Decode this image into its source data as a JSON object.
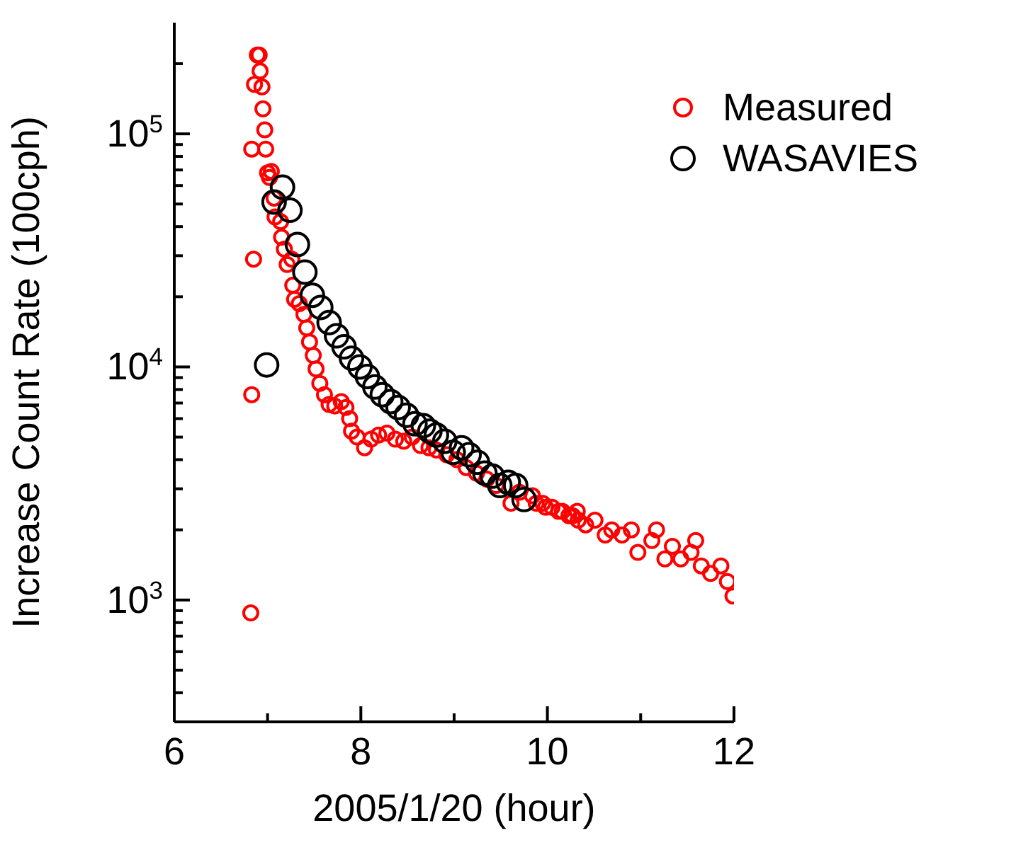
{
  "chart_data": {
    "type": "scatter",
    "xlabel": "2005/1/20 (hour)",
    "ylabel": "Increase Count Rate (100cph)",
    "log": "y",
    "marker": "circle",
    "legend": "top right",
    "grid": false,
    "xlim": [
      6,
      12
    ],
    "xticks": [
      6,
      {
        "value": 7,
        "label": null
      },
      8,
      {
        "value": 9,
        "label": null
      },
      10,
      {
        "value": 11,
        "label": null
      },
      12
    ],
    "ylim": [
      300,
      300000
    ],
    "yticks": [
      {
        "value": 400,
        "label": null
      },
      {
        "value": 500,
        "label": null
      },
      {
        "value": 600,
        "label": null
      },
      {
        "value": 700,
        "label": null
      },
      {
        "value": 800,
        "label": null
      },
      {
        "value": 900,
        "label": null
      },
      {
        "value": 1000,
        "label": "10$^{3}$"
      },
      {
        "value": 2000,
        "label": null
      },
      {
        "value": 3000,
        "label": null
      },
      {
        "value": 4000,
        "label": null
      },
      {
        "value": 5000,
        "label": null
      },
      {
        "value": 6000,
        "label": null
      },
      {
        "value": 7000,
        "label": null
      },
      {
        "value": 8000,
        "label": null
      },
      {
        "value": 9000,
        "label": null
      },
      {
        "value": 10000,
        "label": "10$^{4}$"
      },
      {
        "value": 20000,
        "label": null
      },
      {
        "value": 30000,
        "label": null
      },
      {
        "value": 40000,
        "label": null
      },
      {
        "value": 50000,
        "label": null
      },
      {
        "value": 60000,
        "label": null
      },
      {
        "value": 70000,
        "label": null
      },
      {
        "value": 80000,
        "label": null
      },
      {
        "value": 90000,
        "label": null
      },
      {
        "value": 100000,
        "label": "10$^{5}$"
      },
      {
        "value": 200000,
        "label": null
      }
    ],
    "series": [
      {
        "name": "Measured",
        "color": "#ff0000",
        "x": [
          6.82,
          6.83,
          6.83,
          6.85,
          6.86,
          6.89,
          6.91,
          6.92,
          6.94,
          6.95,
          6.97,
          6.98,
          7.0,
          7.02,
          7.04,
          7.07,
          7.08,
          7.14,
          7.15,
          7.18,
          7.21,
          7.26,
          7.27,
          7.29,
          7.34,
          7.39,
          7.42,
          7.45,
          7.49,
          7.52,
          7.56,
          7.61,
          7.66,
          7.72,
          7.79,
          7.84,
          7.88,
          7.9,
          7.96,
          8.04,
          8.11,
          8.19,
          8.28,
          8.37,
          8.46,
          8.55,
          8.64,
          8.73,
          8.81,
          8.92,
          9.03,
          9.13,
          9.24,
          9.35,
          9.45,
          9.61,
          9.7,
          9.84,
          9.88,
          9.95,
          9.98,
          10.05,
          10.12,
          10.16,
          10.23,
          10.27,
          10.32,
          10.33,
          10.41,
          10.51,
          10.62,
          10.69,
          10.8,
          10.9,
          10.97,
          11.12,
          11.17,
          11.26,
          11.34,
          11.43,
          11.54,
          11.59,
          11.65,
          11.75,
          11.86,
          11.93,
          11.99
        ],
        "values": [
          880,
          7600,
          86000,
          29000,
          163000,
          218000,
          218000,
          186000,
          159000,
          128000,
          104000,
          86000,
          68000,
          65000,
          69000,
          53000,
          44000,
          42000,
          36000,
          32000,
          27500,
          29000,
          22400,
          19500,
          18700,
          16800,
          14700,
          12800,
          11200,
          9800,
          8500,
          7600,
          6900,
          6800,
          7100,
          6700,
          6000,
          5300,
          5000,
          4500,
          4900,
          5100,
          5200,
          4900,
          4800,
          5000,
          4600,
          4500,
          4400,
          4200,
          4000,
          3700,
          3500,
          3300,
          3100,
          2600,
          2900,
          2800,
          2600,
          2600,
          2500,
          2500,
          2400,
          2400,
          2300,
          2300,
          2400,
          2200,
          2100,
          2200,
          1900,
          2000,
          1900,
          2000,
          1600,
          1800,
          2000,
          1500,
          1700,
          1500,
          1600,
          1800,
          1400,
          1300,
          1400,
          1200,
          1040
        ]
      },
      {
        "name": "WASAVIES",
        "color": "#000000",
        "x": [
          6.99,
          7.07,
          7.16,
          7.24,
          7.32,
          7.4,
          7.48,
          7.57,
          7.66,
          7.74,
          7.82,
          7.9,
          7.99,
          8.07,
          8.15,
          8.23,
          8.32,
          8.4,
          8.49,
          8.58,
          8.67,
          8.74,
          8.81,
          8.9,
          8.99,
          9.08,
          9.16,
          9.25,
          9.33,
          9.41,
          9.49,
          9.58,
          9.66,
          9.75
        ],
        "values": [
          10200,
          51000,
          59000,
          47000,
          33500,
          25500,
          20300,
          18000,
          15500,
          13600,
          12200,
          10900,
          10000,
          9100,
          8200,
          7600,
          7100,
          6700,
          6200,
          5700,
          5600,
          5300,
          5100,
          4800,
          4300,
          4500,
          4200,
          3900,
          3500,
          3400,
          3100,
          3200,
          3100,
          2700
        ]
      }
    ]
  }
}
